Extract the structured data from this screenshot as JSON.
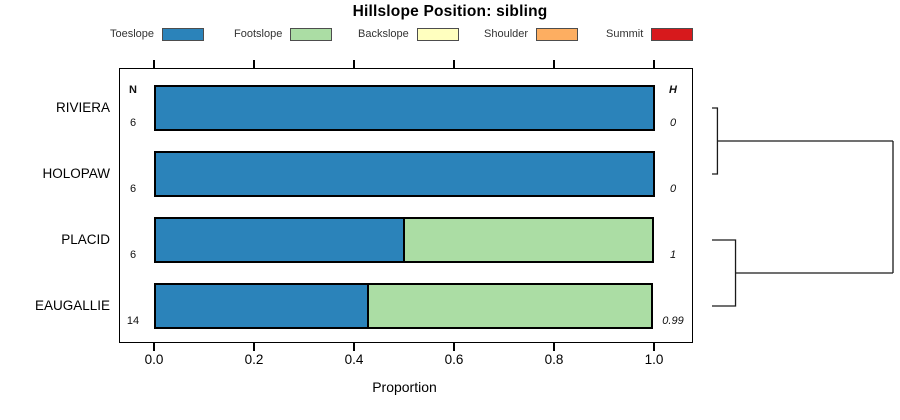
{
  "title": "Hillslope Position: sibling",
  "legend": {
    "items": [
      {
        "label": "Toeslope",
        "color": "#2B83BA"
      },
      {
        "label": "Footslope",
        "color": "#ABDDA4"
      },
      {
        "label": "Backslope",
        "color": "#FFFFBF"
      },
      {
        "label": "Shoulder",
        "color": "#FDAE61"
      },
      {
        "label": "Summit",
        "color": "#D7191C"
      }
    ]
  },
  "chart_data": {
    "type": "bar",
    "variant": "horizontal-stacked-proportion",
    "title": "Hillslope Position: sibling",
    "categories": [
      "RIVIERA",
      "HOLOPAW",
      "PLACID",
      "EAUGALLIE"
    ],
    "series": [
      {
        "name": "Toeslope",
        "color": "#2B83BA",
        "values": [
          1.0,
          1.0,
          0.5,
          0.43
        ]
      },
      {
        "name": "Footslope",
        "color": "#ABDDA4",
        "values": [
          0,
          0,
          0.5,
          0.57
        ]
      },
      {
        "name": "Backslope",
        "color": "#FFFFBF",
        "values": [
          0,
          0,
          0,
          0
        ]
      },
      {
        "name": "Shoulder",
        "color": "#FDAE61",
        "values": [
          0,
          0,
          0,
          0
        ]
      },
      {
        "name": "Summit",
        "color": "#D7191C",
        "values": [
          0,
          0,
          0,
          0
        ]
      }
    ],
    "n_column": {
      "header": "N",
      "values": [
        "6",
        "6",
        "6",
        "14"
      ]
    },
    "h_column": {
      "header": "H",
      "values": [
        "0",
        "0",
        "1",
        "0.99"
      ]
    },
    "xlabel": "Proportion",
    "xlim": [
      0,
      1
    ],
    "xticks": [
      "0.0",
      "0.2",
      "0.4",
      "0.6",
      "0.8",
      "1.0"
    ],
    "grid": false,
    "legend_position": "top",
    "dendrogram": {
      "clusters": [
        {
          "rows": [
            0,
            1
          ],
          "height": 0.03
        },
        {
          "rows": [
            2,
            3
          ],
          "height": 0.13
        }
      ],
      "root_height": 1.0
    }
  }
}
